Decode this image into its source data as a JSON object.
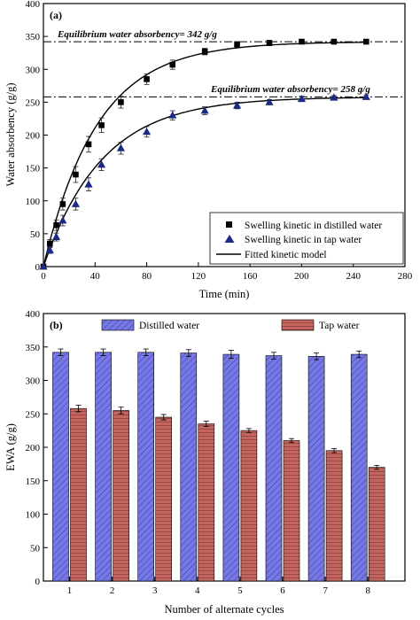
{
  "chart_data": [
    {
      "panel_label": "(a)",
      "type": "scatter",
      "xlabel": "Time (min)",
      "ylabel": "Water absorbency (g/g)",
      "xlim": [
        0,
        280
      ],
      "ylim": [
        0,
        400
      ],
      "xticks": [
        0,
        40,
        80,
        120,
        160,
        200,
        240,
        280
      ],
      "yticks": [
        0,
        50,
        100,
        150,
        200,
        250,
        300,
        350,
        400
      ],
      "series": [
        {
          "name": "Swelling kinetic in distilled water",
          "marker": "square",
          "color": "#000000",
          "x": [
            0,
            5,
            10,
            15,
            25,
            35,
            45,
            60,
            80,
            100,
            125,
            150,
            175,
            200,
            225,
            250
          ],
          "y": [
            0,
            35,
            63,
            95,
            140,
            186,
            215,
            250,
            285,
            307,
            327,
            338,
            340,
            342,
            342,
            342
          ],
          "err": [
            0,
            6,
            8,
            9,
            12,
            12,
            11,
            9,
            8,
            7,
            5,
            4,
            4,
            3,
            3,
            3
          ]
        },
        {
          "name": "Swelling kinetic in tap water",
          "marker": "triangle",
          "color": "#1c2a86",
          "x": [
            0,
            5,
            10,
            15,
            25,
            35,
            45,
            60,
            80,
            100,
            125,
            150,
            175,
            200,
            225,
            250
          ],
          "y": [
            0,
            25,
            45,
            70,
            95,
            125,
            155,
            180,
            205,
            230,
            237,
            245,
            250,
            255,
            257,
            258
          ],
          "err": [
            0,
            5,
            6,
            8,
            9,
            10,
            9,
            9,
            8,
            7,
            6,
            5,
            4,
            4,
            3,
            3
          ]
        }
      ],
      "fitted": [
        {
          "name": "Fitted kinetic model",
          "eq_value": 342,
          "rate": 0.024
        },
        {
          "name": "",
          "eq_value": 258,
          "rate": 0.022
        }
      ],
      "annotations": [
        {
          "text": "Equilibrium water absorbency= 342 g/g",
          "y": 342
        },
        {
          "text": "Equilibrium water absorbency= 258 g/g",
          "y": 258
        }
      ],
      "legend": {
        "placement": "bottom-right",
        "items": [
          "Swelling kinetic in distilled water",
          "Swelling kinetic in tap water",
          "Fitted kinetic model"
        ]
      }
    },
    {
      "panel_label": "(b)",
      "type": "bar",
      "xlabel": "Number of alternate cycles",
      "ylabel": "EWA (g/g)",
      "categories": [
        "1",
        "2",
        "3",
        "4",
        "5",
        "6",
        "7",
        "8"
      ],
      "ylim": [
        0,
        400
      ],
      "yticks": [
        0,
        50,
        100,
        150,
        200,
        250,
        300,
        350,
        400
      ],
      "series": [
        {
          "name": "Distilled water",
          "color": "#7275e0",
          "pattern": "diagonal-hatch",
          "values": [
            342,
            342,
            342,
            341,
            339,
            337,
            336,
            339
          ],
          "err": [
            5,
            5,
            5,
            5,
            6,
            5,
            5,
            5
          ]
        },
        {
          "name": "Tap water",
          "color": "#c2645f",
          "pattern": "horizontal-lines",
          "values": [
            258,
            255,
            245,
            235,
            225,
            210,
            195,
            170
          ],
          "err": [
            5,
            5,
            4,
            4,
            3,
            3,
            3,
            3
          ]
        }
      ],
      "legend": {
        "placement": "top",
        "items": [
          "Distilled water",
          "Tap water"
        ]
      }
    }
  ]
}
